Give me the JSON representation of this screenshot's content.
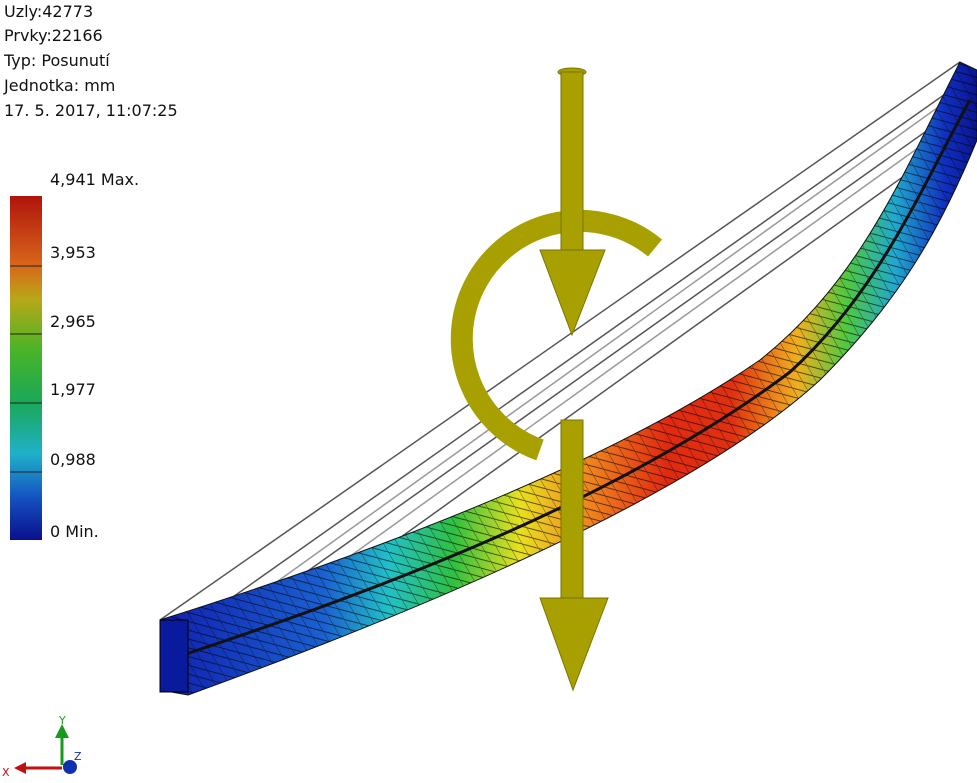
{
  "info": {
    "nodes": "Uzly:42773",
    "elements": "Prvky:22166",
    "type": "Typ: Posunutí",
    "unit": "Jednotka: mm",
    "date": "17. 5. 2017, 11:07:25"
  },
  "legend": {
    "labels": [
      "4,941 Max.",
      "3,953",
      "2,965",
      "1,977",
      "0,988",
      "0 Min."
    ]
  },
  "triad": {
    "x": "X",
    "y": "Y",
    "z": "Z"
  }
}
